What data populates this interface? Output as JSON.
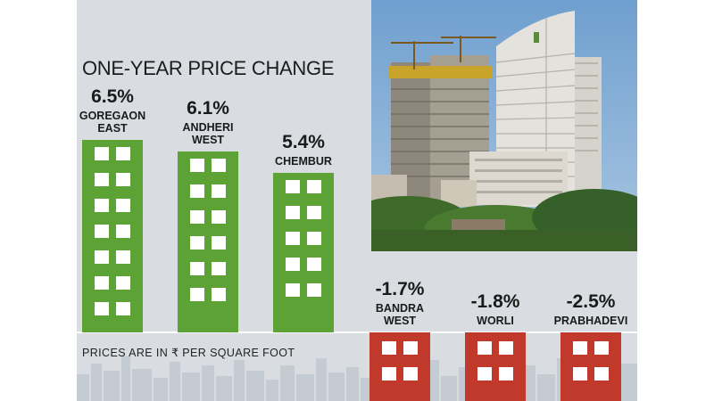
{
  "chart_data": {
    "type": "bar",
    "title": "ONE-YEAR PRICE CHANGE",
    "categories": [
      "GOREGAON\nEAST",
      "ANDHERI\nWEST",
      "CHEMBUR",
      "BANDRA\nWEST",
      "WORLI",
      "PRABHADEVI"
    ],
    "values": [
      6.5,
      6.1,
      5.4,
      -1.7,
      -1.8,
      -2.5
    ],
    "value_labels": [
      "6.5%",
      "6.1%",
      "5.4%",
      "-1.7%",
      "-1.8%",
      "-2.5%"
    ],
    "xlabel": "",
    "ylabel": "",
    "ylim": [
      -2.5,
      6.5
    ],
    "grid": false,
    "note": "PRICES ARE IN ₹ PER SQUARE FOOT",
    "colors": {
      "positive": "#5da234",
      "negative": "#c0392b",
      "panel": "#d9dde2"
    }
  }
}
